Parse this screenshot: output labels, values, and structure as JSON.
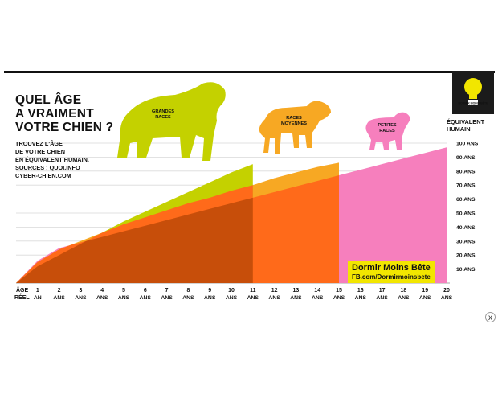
{
  "header": {
    "title_lines": [
      "QUEL ÂGE",
      "A VRAIMENT",
      "VOTRE CHIEN ?"
    ],
    "subtitle_lines": [
      "TROUVEZ L'ÂGE",
      "DE VOTRE CHIEN",
      "EN ÉQUIVALENT HUMAIN.",
      "SOURCES : QUOI.INFO",
      "CYBER-CHIEN.COM"
    ]
  },
  "branding": {
    "name": "Dormir Moins Bête",
    "url": "FB.com/Dormirmoinsbete",
    "logo_icon": "lightbulb-icon",
    "logo_text": "DORMIR MOINS BÊTE"
  },
  "close_label": "x",
  "colors": {
    "large": "#c4d100",
    "medium": "#f7a823",
    "small": "#f67fbd",
    "overlap_orange": "#ff6a1a",
    "overlap_dark": "#c74e0a",
    "grid": "#d9d9d9",
    "brand_bg": "#f2e600",
    "title": "#111111"
  },
  "chart_data": {
    "type": "area",
    "x_axis_title": [
      "ÂGE",
      "RÉEL"
    ],
    "y_axis_title": [
      "ÉQUIVALENT",
      "HUMAIN"
    ],
    "x_ticks": [
      {
        "value": 1,
        "label": "1",
        "unit": "AN"
      },
      {
        "value": 2,
        "label": "2",
        "unit": "ANS"
      },
      {
        "value": 3,
        "label": "3",
        "unit": "ANS"
      },
      {
        "value": 4,
        "label": "4",
        "unit": "ANS"
      },
      {
        "value": 5,
        "label": "5",
        "unit": "ANS"
      },
      {
        "value": 6,
        "label": "6",
        "unit": "ANS"
      },
      {
        "value": 7,
        "label": "7",
        "unit": "ANS"
      },
      {
        "value": 8,
        "label": "8",
        "unit": "ANS"
      },
      {
        "value": 9,
        "label": "9",
        "unit": "ANS"
      },
      {
        "value": 10,
        "label": "10",
        "unit": "ANS"
      },
      {
        "value": 11,
        "label": "11",
        "unit": "ANS"
      },
      {
        "value": 12,
        "label": "12",
        "unit": "ANS"
      },
      {
        "value": 13,
        "label": "13",
        "unit": "ANS"
      },
      {
        "value": 14,
        "label": "14",
        "unit": "ANS"
      },
      {
        "value": 15,
        "label": "15",
        "unit": "ANS"
      },
      {
        "value": 16,
        "label": "16",
        "unit": "ANS"
      },
      {
        "value": 17,
        "label": "17",
        "unit": "ANS"
      },
      {
        "value": 18,
        "label": "18",
        "unit": "ANS"
      },
      {
        "value": 19,
        "label": "19",
        "unit": "ANS"
      },
      {
        "value": 20,
        "label": "20",
        "unit": "ANS"
      }
    ],
    "y_ticks": [
      {
        "value": 10,
        "label": "10 ANS"
      },
      {
        "value": 20,
        "label": "20 ANS"
      },
      {
        "value": 30,
        "label": "30 ANS"
      },
      {
        "value": 40,
        "label": "40 ANS"
      },
      {
        "value": 50,
        "label": "50 ANS"
      },
      {
        "value": 60,
        "label": "60 ANS"
      },
      {
        "value": 70,
        "label": "70 ANS"
      },
      {
        "value": 80,
        "label": "80 ANS"
      },
      {
        "value": 90,
        "label": "90 ANS"
      },
      {
        "value": 100,
        "label": "100 ANS"
      }
    ],
    "xlim": [
      0,
      20
    ],
    "ylim": [
      0,
      100
    ],
    "grid": true,
    "series": [
      {
        "name": "GRANDES RACES",
        "label_lines": [
          "GRANDES",
          "RACES"
        ],
        "color_key": "large",
        "icon": "large-dog-icon",
        "points": [
          [
            0,
            0
          ],
          [
            1,
            12
          ],
          [
            2,
            20
          ],
          [
            3,
            28
          ],
          [
            4,
            36
          ],
          [
            5,
            44
          ],
          [
            6,
            51
          ],
          [
            7,
            58
          ],
          [
            8,
            65
          ],
          [
            9,
            72
          ],
          [
            10,
            79
          ],
          [
            11,
            85
          ]
        ]
      },
      {
        "name": "RACES MOYENNES",
        "label_lines": [
          "RACES",
          "MOYENNES"
        ],
        "color_key": "medium",
        "icon": "medium-dog-icon",
        "points": [
          [
            0,
            0
          ],
          [
            1,
            15
          ],
          [
            2,
            24
          ],
          [
            3,
            30
          ],
          [
            4,
            36
          ],
          [
            5,
            42
          ],
          [
            6,
            47
          ],
          [
            7,
            52
          ],
          [
            8,
            57
          ],
          [
            9,
            61
          ],
          [
            10,
            66
          ],
          [
            11,
            70
          ],
          [
            12,
            75
          ],
          [
            13,
            79
          ],
          [
            14,
            83
          ],
          [
            15,
            86
          ]
        ]
      },
      {
        "name": "PETITES RACES",
        "label_lines": [
          "PETITES",
          "RACES"
        ],
        "color_key": "small",
        "icon": "small-dog-icon",
        "points": [
          [
            0,
            0
          ],
          [
            1,
            16
          ],
          [
            2,
            25
          ],
          [
            3,
            29
          ],
          [
            4,
            33
          ],
          [
            5,
            37
          ],
          [
            6,
            41
          ],
          [
            7,
            45
          ],
          [
            8,
            49
          ],
          [
            9,
            53
          ],
          [
            10,
            57
          ],
          [
            11,
            61
          ],
          [
            12,
            65
          ],
          [
            13,
            69
          ],
          [
            14,
            73
          ],
          [
            15,
            77
          ],
          [
            16,
            81
          ],
          [
            17,
            85
          ],
          [
            18,
            89
          ],
          [
            19,
            93
          ],
          [
            20,
            97
          ]
        ]
      }
    ]
  }
}
